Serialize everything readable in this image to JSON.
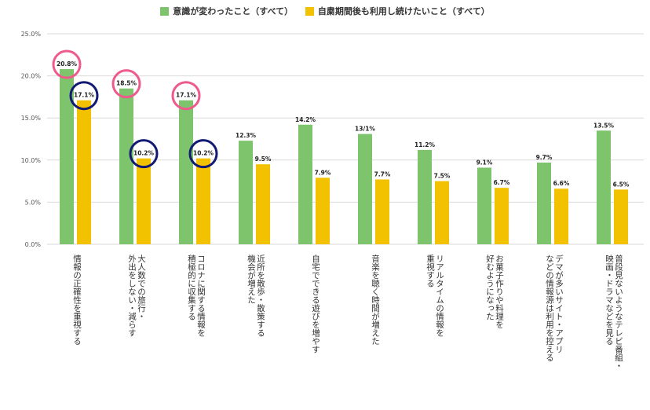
{
  "colors": {
    "series1": "#7dc46d",
    "series2": "#f2c200",
    "grid": "#d9d9d9",
    "axis_text": "#555555",
    "circle_pink": "#ee5a8b",
    "circle_navy": "#121a73"
  },
  "chart_data": {
    "type": "bar",
    "categories": [
      "情報の正確性を重視する",
      "大人数での旅行・外出をしない・減らす",
      "コロナに関する情報を積極的に収集する",
      "近所を散歩・散策する機会が増えた",
      "自宅でできる遊びを増やす",
      "音楽を聴く時間が増えた",
      "リアルタイムの情報を重視する",
      "お菓子作りや料理を好むようになった",
      "デマが多いサイト・アプリなどの情報源は利用を控える",
      "普段見ないようなテレビ番組・映画・ドラマなどを見る"
    ],
    "category_lines": [
      [
        "情報の正確性を重視する"
      ],
      [
        "大人数での旅行・",
        "外出をしない・減らす"
      ],
      [
        "コロナに関する情報を",
        "積極的に収集する"
      ],
      [
        "近所を散歩・散策する",
        "機会が増えた"
      ],
      [
        "自宅でできる遊びを増やす"
      ],
      [
        "音楽を聴く時間が増えた"
      ],
      [
        "リアルタイムの情報を",
        "重視する"
      ],
      [
        "お菓子作りや料理を",
        "好むようになった"
      ],
      [
        "デマが多いサイト・アプリ",
        "などの情報源は利用を控える"
      ],
      [
        "普段見ないようなテレビ番組・",
        "映画・ドラマなどを見る"
      ]
    ],
    "series": [
      {
        "name": "意識が変わったこと（すべて）",
        "values": [
          20.8,
          18.5,
          17.1,
          12.3,
          14.2,
          13.1,
          11.2,
          9.1,
          9.7,
          13.5
        ],
        "labels": [
          "20.8%",
          "18.5%",
          "17.1%",
          "12.3%",
          "14.2%",
          "13/1%",
          "11.2%",
          "9.1%",
          "9.7%",
          "13.5%"
        ]
      },
      {
        "name": "自粛期間後も利用し続けたいこと（すべて）",
        "values": [
          17.1,
          10.2,
          10.2,
          9.5,
          7.9,
          7.7,
          7.5,
          6.7,
          6.6,
          6.5
        ],
        "labels": [
          "17.1%",
          "10.2%",
          "10.2%",
          "9.5%",
          "7.9%",
          "7.7%",
          "7.5%",
          "6.7%",
          "6.6%",
          "6.5%"
        ]
      }
    ],
    "yticks": [
      "0.0%",
      "5.0%",
      "10.0%",
      "15.0%",
      "20.0%",
      "25.0%"
    ],
    "ylim": [
      0,
      25
    ],
    "grid": true,
    "legend_position": "top",
    "highlights": [
      {
        "series": 0,
        "index": 0,
        "color": "pink"
      },
      {
        "series": 1,
        "index": 0,
        "color": "navy"
      },
      {
        "series": 0,
        "index": 1,
        "color": "pink"
      },
      {
        "series": 1,
        "index": 1,
        "color": "navy"
      },
      {
        "series": 0,
        "index": 2,
        "color": "pink"
      },
      {
        "series": 1,
        "index": 2,
        "color": "navy"
      }
    ]
  }
}
